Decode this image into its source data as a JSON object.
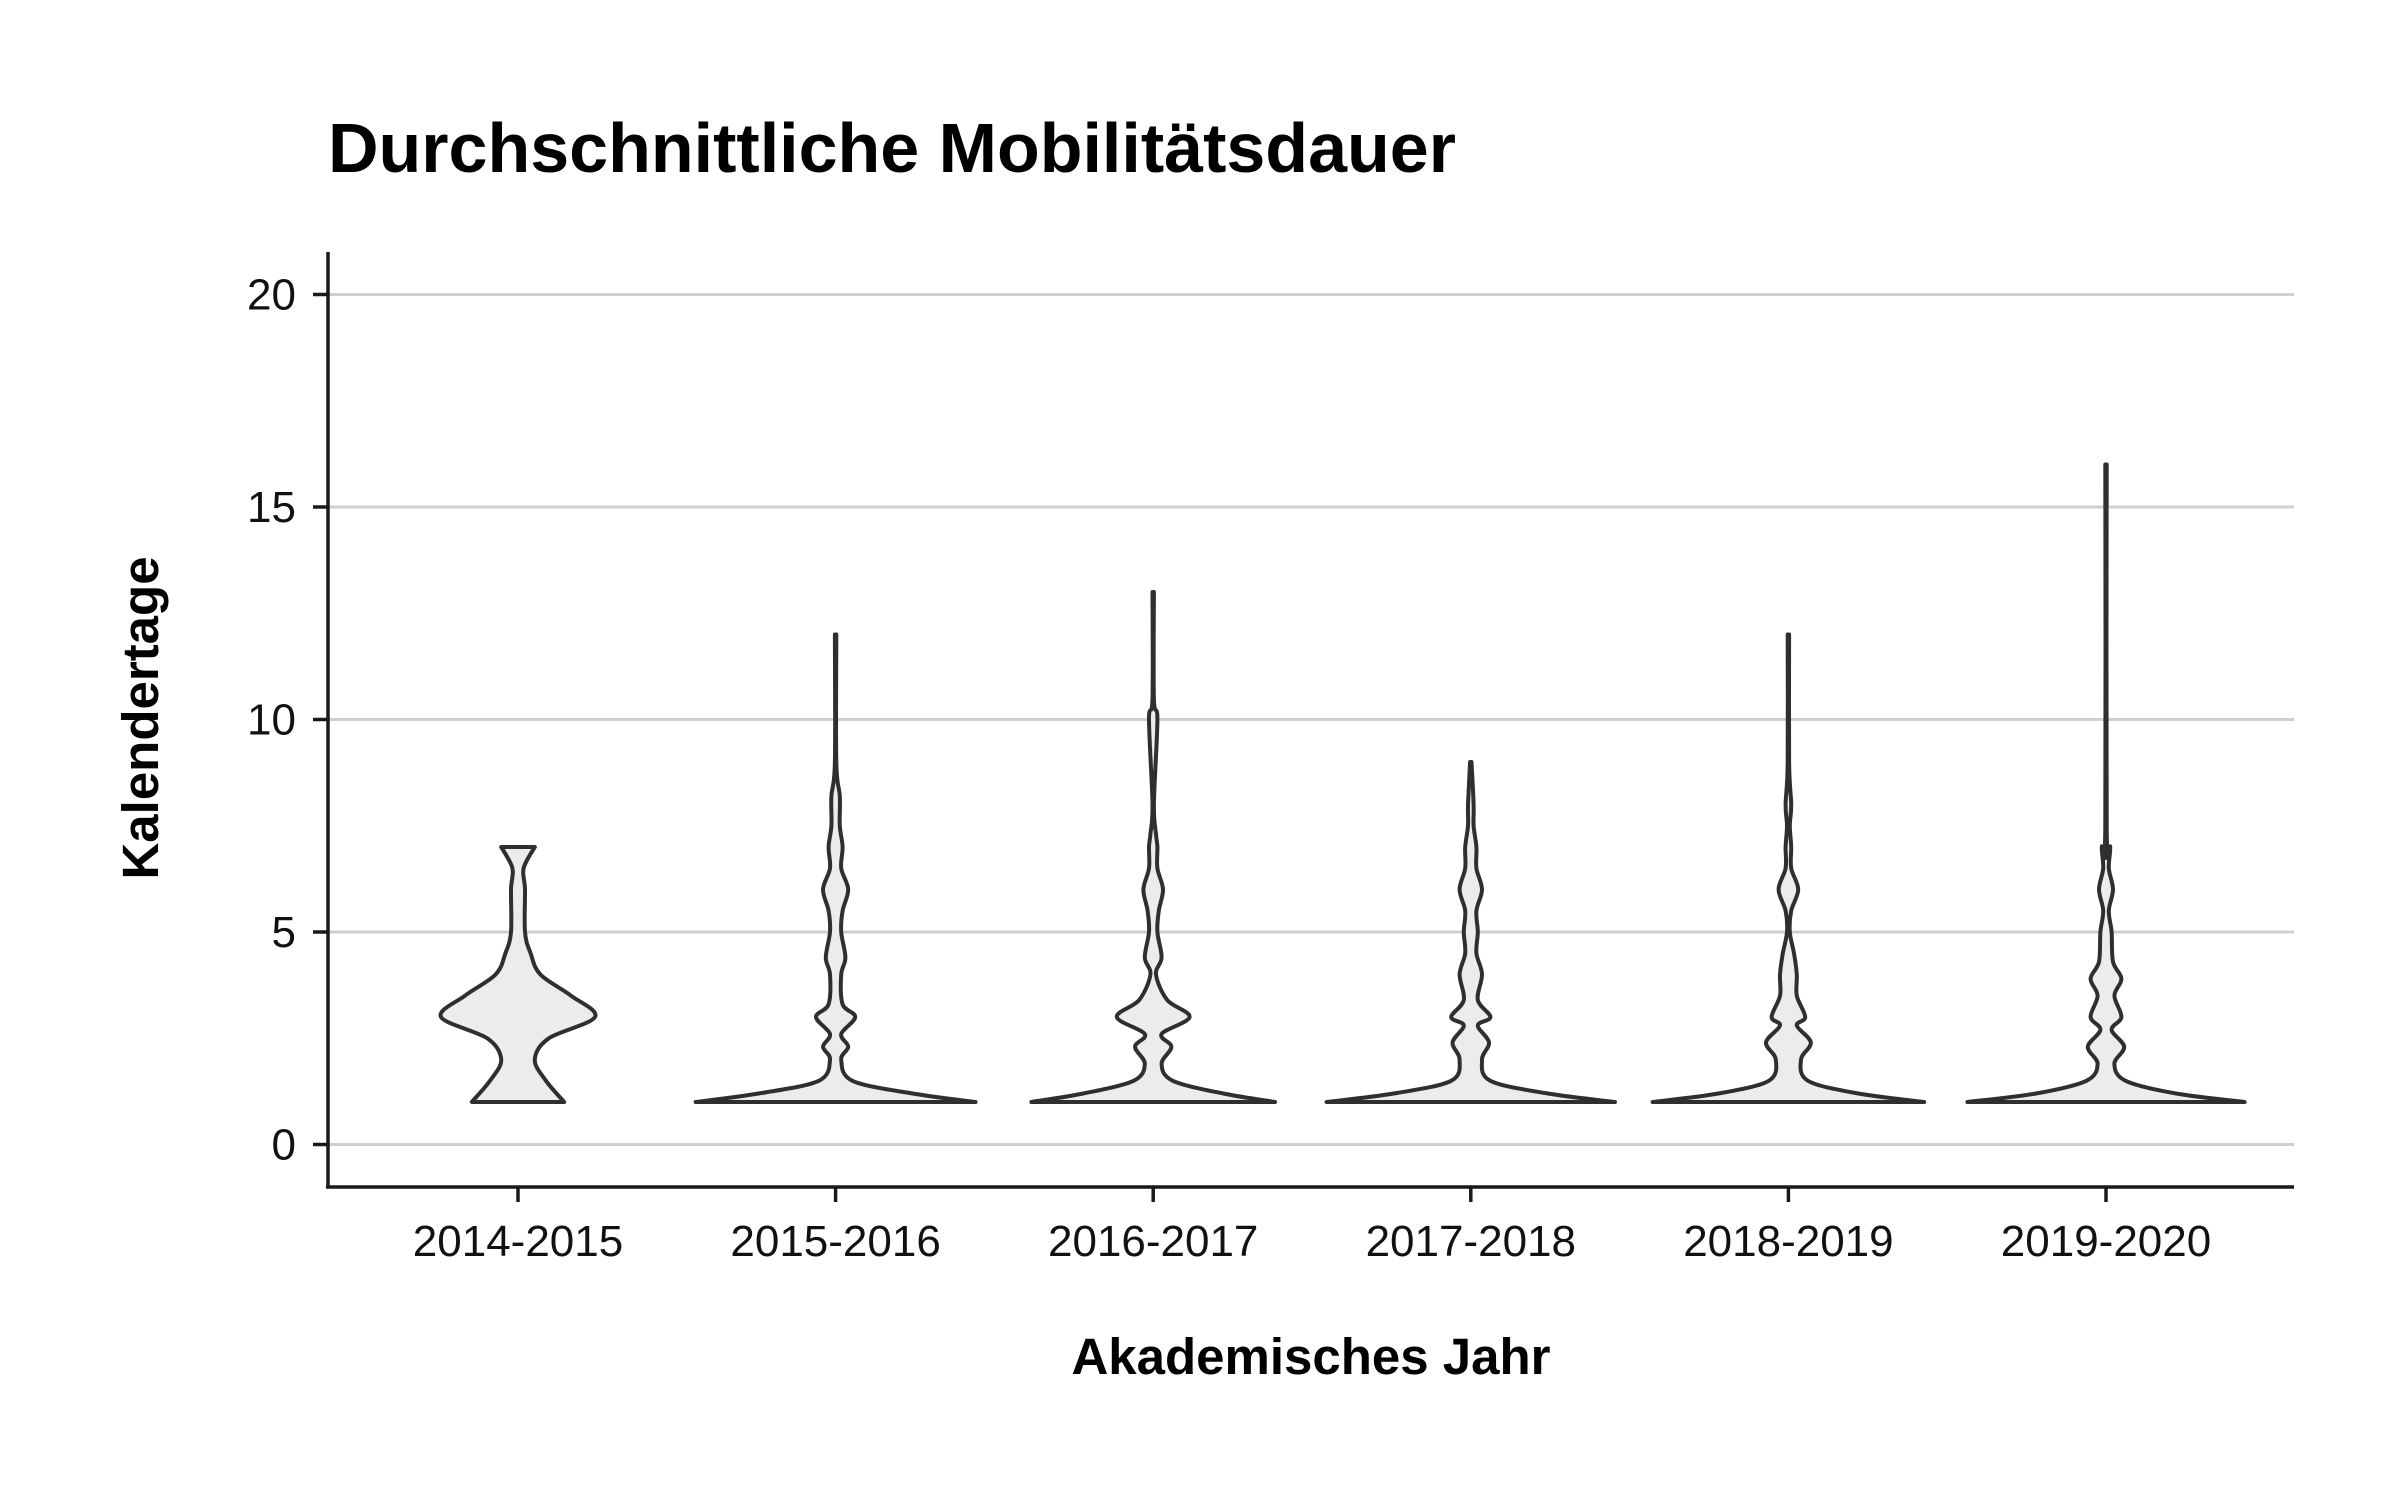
{
  "chart_data": {
    "type": "violin",
    "title": "Durchschnittliche Mobilitätsdauer",
    "xlabel": "Akademisches Jahr",
    "ylabel": "Kalendertage",
    "ylim": [
      -1,
      21
    ],
    "yticks": [
      0,
      5,
      10,
      15,
      20
    ],
    "grid": "horizontal",
    "categories": [
      "2014-2015",
      "2015-2016",
      "2016-2017",
      "2017-2018",
      "2018-2019",
      "2019-2020"
    ],
    "series": [
      {
        "category": "2014-2015",
        "min": 1,
        "max": 7,
        "density": [
          [
            1,
            0.33
          ],
          [
            1.5,
            0.2
          ],
          [
            2,
            0.12
          ],
          [
            2.5,
            0.22
          ],
          [
            3,
            0.55
          ],
          [
            3.5,
            0.38
          ],
          [
            4,
            0.16
          ],
          [
            4.5,
            0.09
          ],
          [
            5,
            0.05
          ],
          [
            6,
            0.05
          ],
          [
            6.5,
            0.04
          ],
          [
            7,
            0.12
          ]
        ]
      },
      {
        "category": "2015-2016",
        "min": 1,
        "max": 12,
        "density": [
          [
            1,
            1.0
          ],
          [
            1.2,
            0.55
          ],
          [
            1.5,
            0.12
          ],
          [
            2,
            0.04
          ],
          [
            2.3,
            0.09
          ],
          [
            2.6,
            0.04
          ],
          [
            3,
            0.14
          ],
          [
            3.3,
            0.05
          ],
          [
            4,
            0.04
          ],
          [
            4.4,
            0.07
          ],
          [
            5,
            0.04
          ],
          [
            5.5,
            0.05
          ],
          [
            6,
            0.09
          ],
          [
            6.5,
            0.04
          ],
          [
            7,
            0.05
          ],
          [
            7.5,
            0.03
          ],
          [
            8.2,
            0.03
          ],
          [
            9,
            0.005
          ],
          [
            12,
            0.005
          ]
        ]
      },
      {
        "category": "2016-2017",
        "min": 1,
        "max": 13,
        "density": [
          [
            1,
            0.87
          ],
          [
            1.2,
            0.5
          ],
          [
            1.5,
            0.14
          ],
          [
            1.9,
            0.06
          ],
          [
            2.3,
            0.13
          ],
          [
            2.6,
            0.06
          ],
          [
            3,
            0.26
          ],
          [
            3.4,
            0.1
          ],
          [
            4,
            0.02
          ],
          [
            4.4,
            0.06
          ],
          [
            5,
            0.03
          ],
          [
            5.5,
            0.04
          ],
          [
            6,
            0.07
          ],
          [
            6.5,
            0.03
          ],
          [
            7,
            0.03
          ],
          [
            7.3,
            0.02
          ],
          [
            8,
            0.005
          ],
          [
            10,
            0.03
          ],
          [
            10.5,
            0.005
          ],
          [
            13,
            0.005
          ]
        ]
      },
      {
        "category": "2017-2018",
        "min": 1,
        "max": 9,
        "density": [
          [
            1,
            1.03
          ],
          [
            1.2,
            0.55
          ],
          [
            1.5,
            0.14
          ],
          [
            2,
            0.08
          ],
          [
            2.4,
            0.13
          ],
          [
            2.8,
            0.05
          ],
          [
            3,
            0.14
          ],
          [
            3.4,
            0.05
          ],
          [
            4,
            0.08
          ],
          [
            4.5,
            0.04
          ],
          [
            5,
            0.05
          ],
          [
            5.5,
            0.04
          ],
          [
            6,
            0.08
          ],
          [
            6.5,
            0.04
          ],
          [
            7,
            0.04
          ],
          [
            7.5,
            0.02
          ],
          [
            8,
            0.02
          ],
          [
            9,
            0.005
          ]
        ]
      },
      {
        "category": "2018-2019",
        "min": 1,
        "max": 12,
        "density": [
          [
            1,
            0.97
          ],
          [
            1.2,
            0.5
          ],
          [
            1.5,
            0.14
          ],
          [
            2,
            0.09
          ],
          [
            2.4,
            0.16
          ],
          [
            2.8,
            0.06
          ],
          [
            3,
            0.12
          ],
          [
            3.5,
            0.06
          ],
          [
            4,
            0.06
          ],
          [
            4.5,
            0.04
          ],
          [
            5,
            0.01
          ],
          [
            5.5,
            0.02
          ],
          [
            6,
            0.07
          ],
          [
            6.5,
            0.02
          ],
          [
            7,
            0.02
          ],
          [
            7.5,
            0.01
          ],
          [
            8,
            0.02
          ],
          [
            9,
            0.005
          ],
          [
            12,
            0.005
          ]
        ]
      },
      {
        "category": "2019-2020",
        "min": 1,
        "max": 16,
        "density": [
          [
            1,
            0.99
          ],
          [
            1.2,
            0.5
          ],
          [
            1.5,
            0.14
          ],
          [
            1.9,
            0.06
          ],
          [
            2.3,
            0.13
          ],
          [
            2.7,
            0.04
          ],
          [
            3,
            0.11
          ],
          [
            3.5,
            0.06
          ],
          [
            3.9,
            0.11
          ],
          [
            4.3,
            0.05
          ],
          [
            5,
            0.04
          ],
          [
            5.5,
            0.02
          ],
          [
            6,
            0.05
          ],
          [
            6.5,
            0.02
          ],
          [
            7,
            0.03
          ],
          [
            7.5,
            0.005
          ],
          [
            16,
            0.005
          ]
        ]
      }
    ]
  }
}
